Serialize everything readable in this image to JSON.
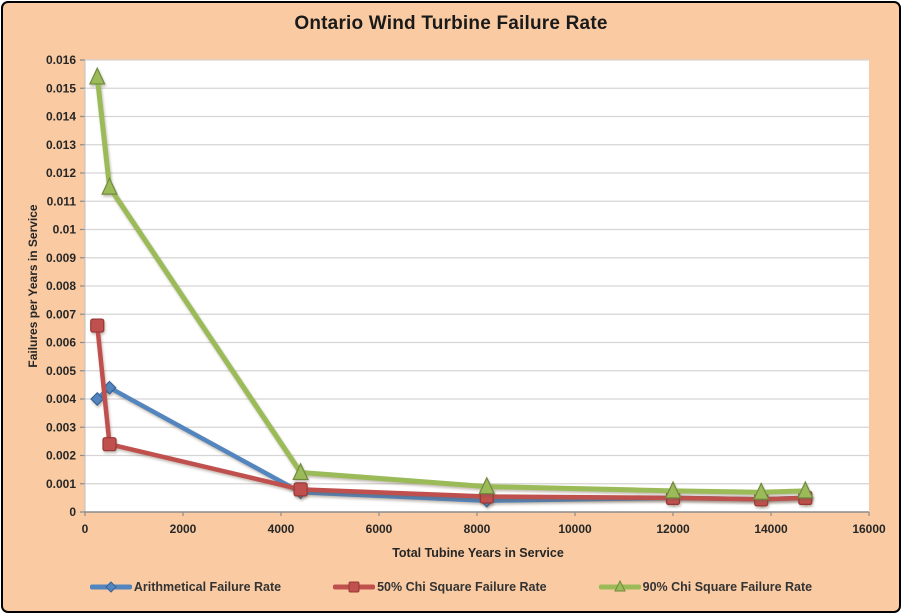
{
  "chart_data": {
    "type": "line",
    "title": "Ontario Wind Turbine Failure Rate",
    "xlabel": "Total Tubine Years in Service",
    "ylabel": "Failures per Years in Service",
    "xlim": [
      0,
      16000
    ],
    "ylim": [
      0,
      0.016
    ],
    "grid": "horizontal-only",
    "legend_position": "bottom",
    "x": [
      250,
      500,
      4400,
      8200,
      12000,
      13800,
      14700
    ],
    "series": [
      {
        "name": "Arithmetical Failure Rate",
        "marker": "diamond",
        "color": "#5385BE",
        "edge": "#396295",
        "values": [
          0.004,
          0.0044,
          0.0007,
          0.0004,
          0.0005,
          0.00045,
          0.0005
        ]
      },
      {
        "name": "50% Chi Square Failure Rate",
        "marker": "square",
        "color": "#C0504D",
        "edge": "#953735",
        "values": [
          0.0066,
          0.0024,
          0.0008,
          0.00055,
          0.0005,
          0.00045,
          0.0005
        ]
      },
      {
        "name": "90% Chi Square Failure Rate",
        "marker": "triangle",
        "color": "#9BBB59",
        "edge": "#71893F",
        "values": [
          0.0154,
          0.0115,
          0.0014,
          0.0009,
          0.00075,
          0.0007,
          0.00075
        ]
      }
    ],
    "xticks": {
      "values": [
        0,
        2000,
        4000,
        6000,
        8000,
        10000,
        12000,
        14000,
        16000
      ],
      "labels": [
        "0",
        "2000",
        "4000",
        "6000",
        "8000",
        "10000",
        "12000",
        "14000",
        "16000"
      ]
    },
    "yticks": {
      "values": [
        0,
        0.001,
        0.002,
        0.003,
        0.004,
        0.005,
        0.006,
        0.007,
        0.008,
        0.009,
        0.01,
        0.011,
        0.012,
        0.013,
        0.014,
        0.015,
        0.016
      ],
      "labels": [
        "0",
        "0.001",
        "0.002",
        "0.003",
        "0.004",
        "0.005",
        "0.006",
        "0.007",
        "0.008",
        "0.009",
        "0.01",
        "0.011",
        "0.012",
        "0.013",
        "0.014",
        "0.015",
        "0.016"
      ]
    },
    "colors": {
      "background": "#FACBA2",
      "plot_background": "#FFFFFF",
      "gridline": "#D6D4D4",
      "axis_line": "#8C8C8C",
      "text": "#262626",
      "frame_border": "#000000"
    }
  }
}
